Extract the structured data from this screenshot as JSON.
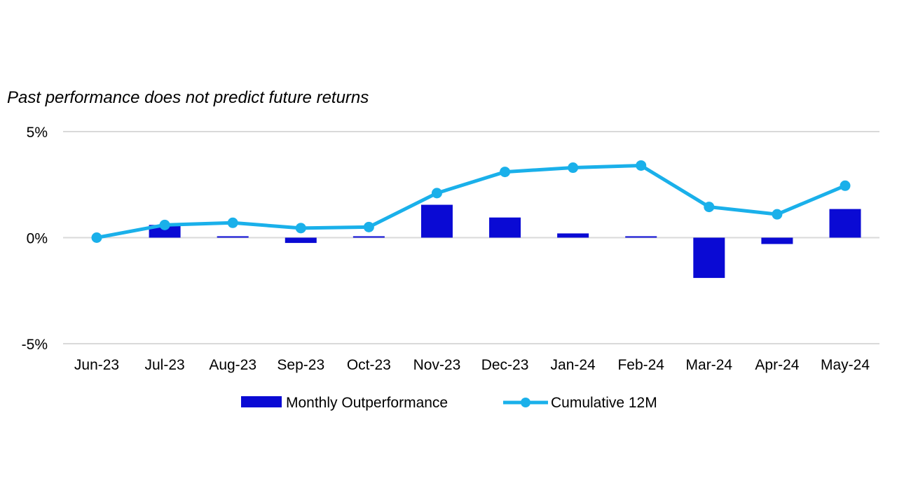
{
  "chart_data": {
    "type": "bar+line",
    "subtitle": "Past performance does not predict future returns",
    "categories": [
      "Jun-23",
      "Jul-23",
      "Aug-23",
      "Sep-23",
      "Oct-23",
      "Nov-23",
      "Dec-23",
      "Jan-24",
      "Feb-24",
      "Mar-24",
      "Apr-24",
      "May-24"
    ],
    "ylim": [
      -5,
      5
    ],
    "y_ticks": [
      {
        "value": 5,
        "label": "5%"
      },
      {
        "value": 0,
        "label": "0%"
      },
      {
        "value": -5,
        "label": "-5%"
      }
    ],
    "grid": true,
    "legend_position": "bottom",
    "series": [
      {
        "name": "Monthly Outperformance",
        "kind": "bar",
        "color": "#0a0ad4",
        "values": [
          0.0,
          0.6,
          0.05,
          -0.25,
          0.05,
          1.55,
          0.95,
          0.2,
          0.05,
          -1.9,
          -0.3,
          1.35
        ]
      },
      {
        "name": "Cumulative 12M",
        "kind": "line",
        "color": "#1ab0ea",
        "marker": "circle",
        "values": [
          0.0,
          0.6,
          0.7,
          0.45,
          0.5,
          2.1,
          3.1,
          3.3,
          3.4,
          1.45,
          1.1,
          2.45
        ]
      }
    ]
  }
}
